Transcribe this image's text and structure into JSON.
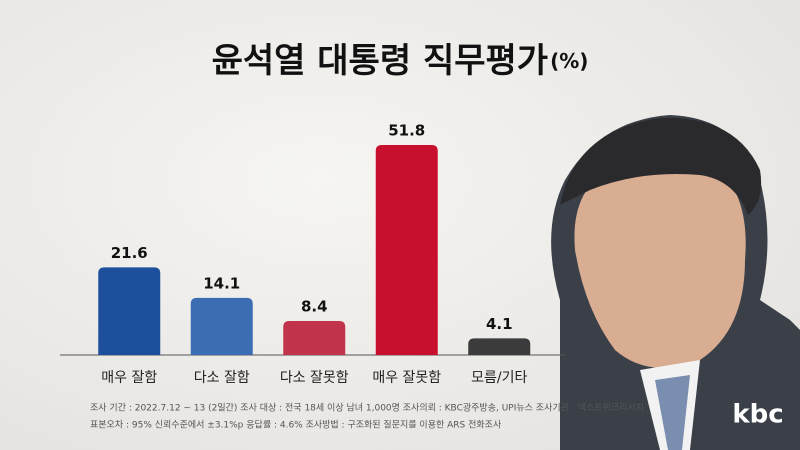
{
  "chart_data": {
    "type": "bar",
    "title": "윤석열 대통령 직무평가",
    "unit": "(%)",
    "categories": [
      "매우 잘함",
      "다소 잘함",
      "다소 잘못함",
      "매우 잘못함",
      "모름/기타"
    ],
    "values": [
      21.6,
      14.1,
      8.4,
      51.8,
      4.1
    ],
    "colors": [
      "#1d4f9c",
      "#3c6db3",
      "#c2344b",
      "#c8102e",
      "#3b3b3b"
    ],
    "notes": [
      "조사 기간 : 2022.7.12 ~ 13 (2일간)   조사 대상 : 전국 18세 이상 남녀 1,000명   조사의뢰 : KBC광주방송, UPI뉴스   조사기관 : 넥스트위크리서치",
      "표본오차 : 95% 신뢰수준에서 ±3.1%p   응답률 : 4.6%   조사방법 : 구조화된 질문지를 이용한 ARS 전화조사"
    ],
    "logo": "kbc"
  }
}
